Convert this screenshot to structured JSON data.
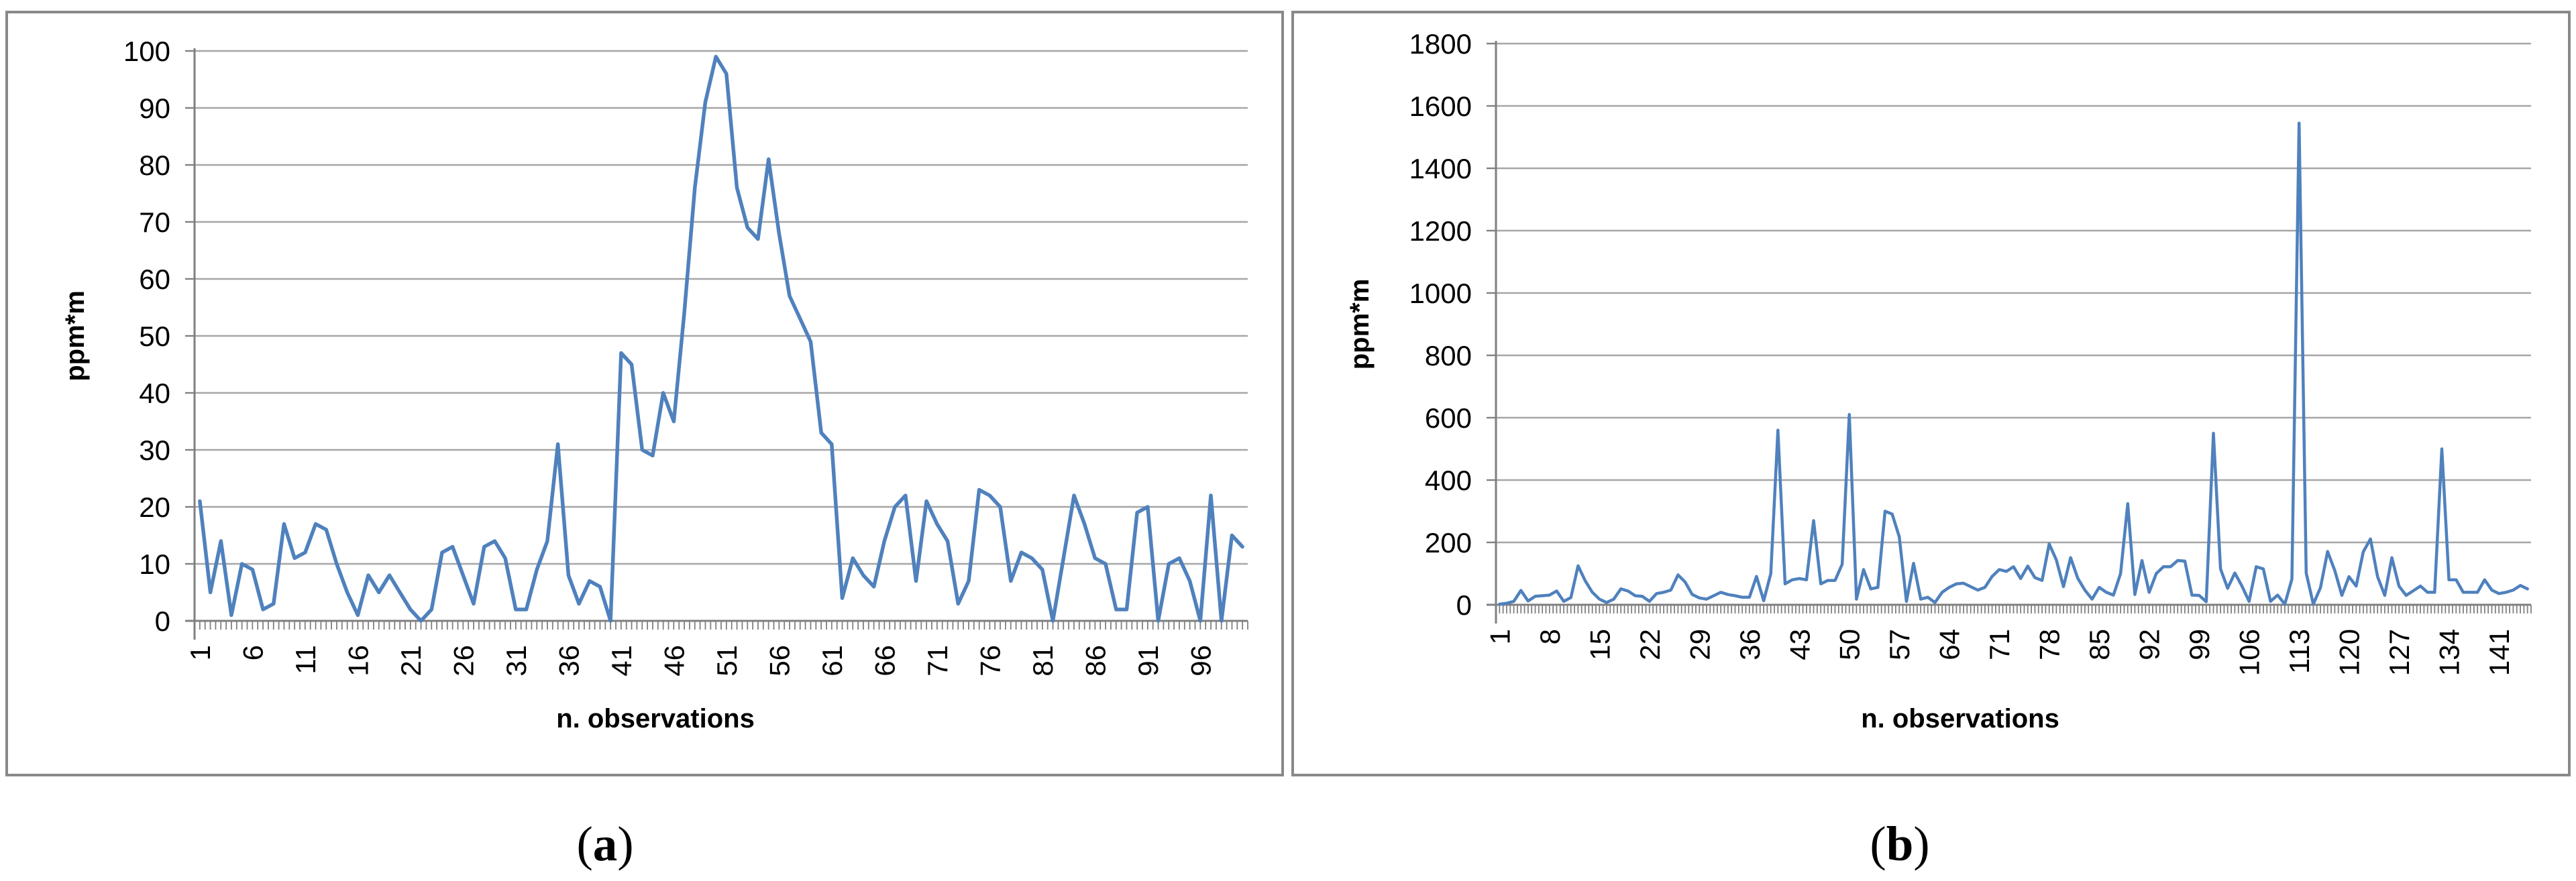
{
  "figure": {
    "background": "#ffffff",
    "panel_count": 2
  },
  "captions": [
    {
      "open": "(",
      "label": "a",
      "close": ")"
    },
    {
      "open": "(",
      "label": "b",
      "close": ")"
    }
  ],
  "colors": {
    "series_line": "#4F81BD",
    "gridline": "#A6A6A6",
    "axis_line": "#7F7F7F",
    "tick_mark": "#808080",
    "panel_border": "#898989",
    "text": "#000000"
  },
  "chart_data": [
    {
      "type": "line",
      "title": "",
      "xlabel": "n. observations",
      "ylabel": "ppm*m",
      "ylim": [
        0,
        100
      ],
      "ytick_interval": 10,
      "y_tick_labels": [
        "0",
        "10",
        "20",
        "30",
        "40",
        "50",
        "60",
        "70",
        "80",
        "90",
        "100"
      ],
      "x_tick_labels": [
        "1",
        "6",
        "11",
        "16",
        "21",
        "26",
        "31",
        "36",
        "41",
        "46",
        "51",
        "56",
        "61",
        "66",
        "71",
        "76",
        "81",
        "86",
        "91",
        "96"
      ],
      "grid": "horizontal",
      "legend_position": "none",
      "n_points": 100,
      "values": [
        21,
        5,
        14,
        1,
        10,
        9,
        2,
        3,
        17,
        11,
        12,
        17,
        16,
        10,
        5,
        1,
        8,
        5,
        8,
        5,
        2,
        0,
        2,
        12,
        13,
        8,
        3,
        13,
        14,
        11,
        2,
        2,
        9,
        14,
        31,
        8,
        3,
        7,
        6,
        0,
        47,
        45,
        30,
        29,
        40,
        35,
        54,
        76,
        91,
        99,
        96,
        76,
        69,
        67,
        81,
        68,
        57,
        53,
        49,
        33,
        31,
        4,
        11,
        8,
        6,
        14,
        20,
        22,
        7,
        21,
        17,
        14,
        3,
        7,
        23,
        22,
        20,
        7,
        12,
        11,
        9,
        0,
        11,
        22,
        17,
        11,
        10,
        2,
        2,
        19,
        20,
        0,
        10,
        11,
        7,
        0,
        22,
        0,
        15,
        13
      ]
    },
    {
      "type": "line",
      "title": "",
      "xlabel": "n. observations",
      "ylabel": "ppm*m",
      "ylim": [
        0,
        1800
      ],
      "ytick_interval": 200,
      "y_tick_labels": [
        "0",
        "200",
        "400",
        "600",
        "800",
        "1000",
        "1200",
        "1400",
        "1600",
        "1800"
      ],
      "x_tick_labels": [
        "1",
        "8",
        "15",
        "22",
        "29",
        "36",
        "43",
        "50",
        "57",
        "64",
        "71",
        "78",
        "85",
        "92",
        "99",
        "106",
        "113",
        "120",
        "127",
        "134",
        "141"
      ],
      "grid": "horizontal",
      "legend_position": "none",
      "n_points": 145,
      "values": [
        2,
        5,
        11,
        46,
        12,
        27,
        29,
        31,
        44,
        11,
        23,
        125,
        77,
        40,
        18,
        7,
        18,
        51,
        44,
        29,
        27,
        11,
        36,
        40,
        47,
        96,
        73,
        33,
        22,
        18,
        29,
        40,
        33,
        29,
        24,
        24,
        91,
        13,
        100,
        560,
        67,
        80,
        84,
        80,
        270,
        67,
        78,
        78,
        130,
        610,
        18,
        113,
        51,
        56,
        300,
        291,
        218,
        11,
        133,
        18,
        24,
        7,
        40,
        56,
        67,
        69,
        58,
        47,
        56,
        91,
        113,
        107,
        122,
        84,
        124,
        87,
        78,
        195,
        144,
        58,
        151,
        85,
        47,
        18,
        56,
        40,
        31,
        100,
        324,
        33,
        142,
        40,
        100,
        122,
        122,
        142,
        140,
        31,
        30,
        10,
        550,
        115,
        53,
        102,
        60,
        11,
        122,
        115,
        11,
        31,
        2,
        82,
        1545,
        102,
        2,
        55,
        171,
        110,
        30,
        90,
        60,
        170,
        211,
        90,
        30,
        151,
        60,
        30,
        45,
        60,
        40,
        40,
        500,
        80,
        80,
        40,
        40,
        40,
        80,
        47,
        36,
        40,
        47,
        62,
        51
      ]
    }
  ]
}
